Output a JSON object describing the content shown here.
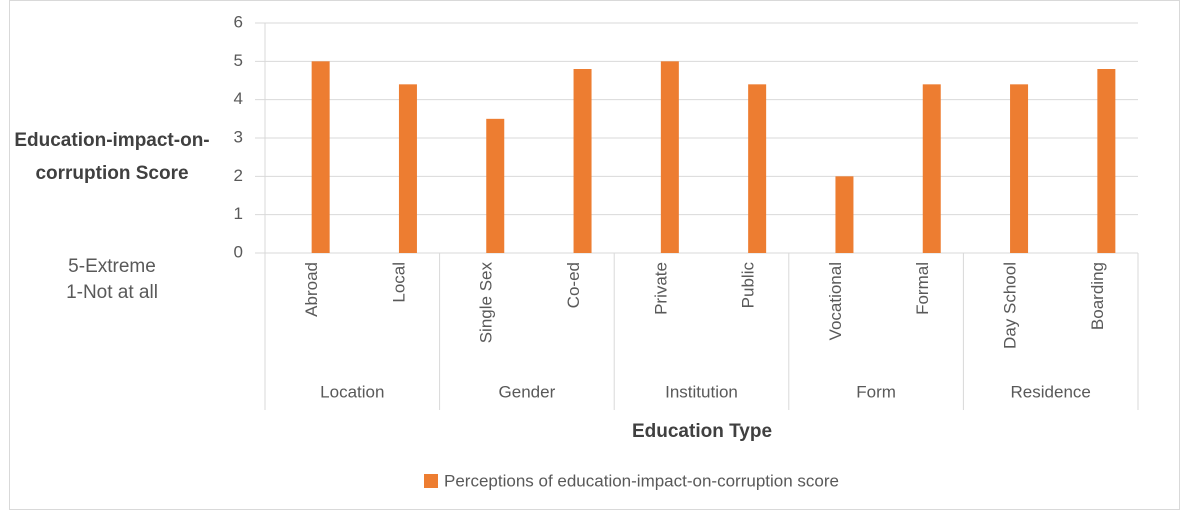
{
  "chart_data": {
    "type": "bar",
    "y_label": "Education-impact-on-corruption Score",
    "annotations": [
      "5-Extreme",
      "1-Not at all"
    ],
    "x_label": "Education Type",
    "categories": [
      "Abroad",
      "Local",
      "Single Sex",
      "Co-ed",
      "Private",
      "Public",
      "Vocational",
      "Formal",
      "Day School",
      "Boarding"
    ],
    "groups": [
      "Location",
      "Gender",
      "Institution",
      "Form",
      "Residence"
    ],
    "series": [
      {
        "name": "Perceptions of education-impact-on-corruption score",
        "color": "#ed7d31",
        "values": [
          5,
          4.4,
          3.5,
          4.8,
          5,
          4.4,
          2,
          4.4,
          4.4,
          4.8
        ]
      }
    ],
    "ylim": [
      0,
      6
    ],
    "yticks": [
      0,
      1,
      2,
      3,
      4,
      5,
      6
    ],
    "grid": true,
    "legend": "bottom"
  }
}
